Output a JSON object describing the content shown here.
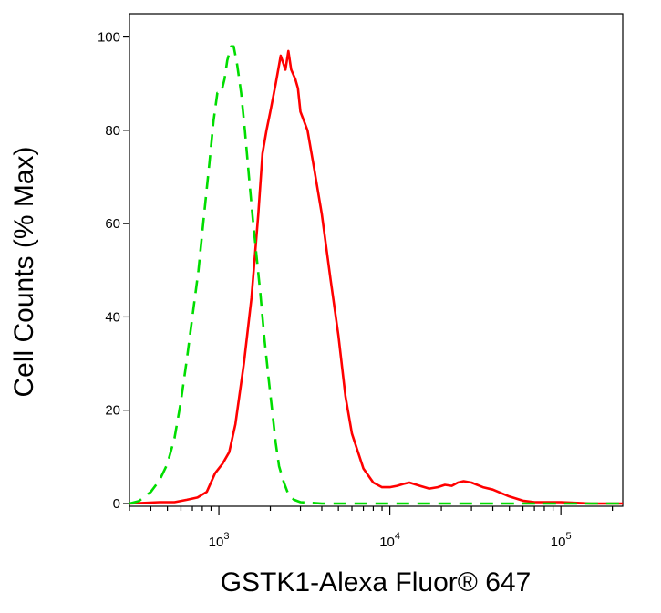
{
  "chart_data": {
    "type": "line",
    "title": "",
    "xlabel": "GSTK1-Alexa Fluor® 647",
    "ylabel": "Cell Counts (% Max)",
    "x_scale": "log",
    "xlim": [
      300,
      230000
    ],
    "ylim": [
      0,
      105
    ],
    "x_tick_labels": [
      {
        "value": 1000,
        "base": "10",
        "exp": "3"
      },
      {
        "value": 10000,
        "base": "10",
        "exp": "4"
      },
      {
        "value": 100000,
        "base": "10",
        "exp": "5"
      }
    ],
    "y_ticks": [
      0,
      20,
      40,
      60,
      80,
      100
    ],
    "grid": false,
    "legend": "none",
    "series": [
      {
        "color": "#ff0000",
        "style": "solid",
        "points": [
          [
            300,
            0
          ],
          [
            450,
            0.3
          ],
          [
            550,
            0.3
          ],
          [
            650,
            0.8
          ],
          [
            750,
            1.3
          ],
          [
            850,
            2.5
          ],
          [
            950,
            6.5
          ],
          [
            1050,
            8.5
          ],
          [
            1150,
            11
          ],
          [
            1250,
            17
          ],
          [
            1400,
            30
          ],
          [
            1550,
            44
          ],
          [
            1700,
            62
          ],
          [
            1800,
            75
          ],
          [
            1900,
            80
          ],
          [
            2000,
            84
          ],
          [
            2150,
            90
          ],
          [
            2300,
            96
          ],
          [
            2450,
            93
          ],
          [
            2550,
            97
          ],
          [
            2650,
            93
          ],
          [
            2800,
            91
          ],
          [
            2900,
            89
          ],
          [
            3000,
            84
          ],
          [
            3300,
            80
          ],
          [
            3600,
            72
          ],
          [
            4000,
            62
          ],
          [
            4500,
            48
          ],
          [
            5000,
            36
          ],
          [
            5500,
            23
          ],
          [
            6000,
            15
          ],
          [
            7000,
            7.5
          ],
          [
            8000,
            4.5
          ],
          [
            9000,
            3.5
          ],
          [
            10000,
            3.5
          ],
          [
            11000,
            3.8
          ],
          [
            12000,
            4.2
          ],
          [
            13000,
            4.5
          ],
          [
            15000,
            3.8
          ],
          [
            17000,
            3.2
          ],
          [
            19000,
            3.5
          ],
          [
            21000,
            4
          ],
          [
            23000,
            3.8
          ],
          [
            25000,
            4.5
          ],
          [
            27000,
            4.8
          ],
          [
            30000,
            4.5
          ],
          [
            35000,
            3.5
          ],
          [
            40000,
            3
          ],
          [
            50000,
            1.5
          ],
          [
            60000,
            0.6
          ],
          [
            70000,
            0.3
          ],
          [
            100000,
            0.3
          ],
          [
            150000,
            0
          ],
          [
            230000,
            0
          ]
        ]
      },
      {
        "color": "#00dd00",
        "style": "dashed",
        "points": [
          [
            300,
            0
          ],
          [
            340,
            0.5
          ],
          [
            400,
            2.5
          ],
          [
            450,
            5
          ],
          [
            500,
            8.5
          ],
          [
            550,
            14
          ],
          [
            600,
            22
          ],
          [
            650,
            31
          ],
          [
            700,
            40
          ],
          [
            760,
            50
          ],
          [
            820,
            62
          ],
          [
            880,
            73
          ],
          [
            930,
            82
          ],
          [
            980,
            88
          ],
          [
            1030,
            88
          ],
          [
            1080,
            91
          ],
          [
            1120,
            95
          ],
          [
            1180,
            98
          ],
          [
            1220,
            98
          ],
          [
            1280,
            94
          ],
          [
            1350,
            88
          ],
          [
            1420,
            80
          ],
          [
            1500,
            70
          ],
          [
            1580,
            61
          ],
          [
            1650,
            54
          ],
          [
            1750,
            45
          ],
          [
            1850,
            35
          ],
          [
            1950,
            27
          ],
          [
            2050,
            20
          ],
          [
            2150,
            13
          ],
          [
            2250,
            8
          ],
          [
            2400,
            4.5
          ],
          [
            2550,
            2
          ],
          [
            2750,
            0.8
          ],
          [
            3000,
            0.3
          ],
          [
            4000,
            0
          ],
          [
            10000,
            0
          ],
          [
            230000,
            0
          ]
        ]
      }
    ]
  }
}
